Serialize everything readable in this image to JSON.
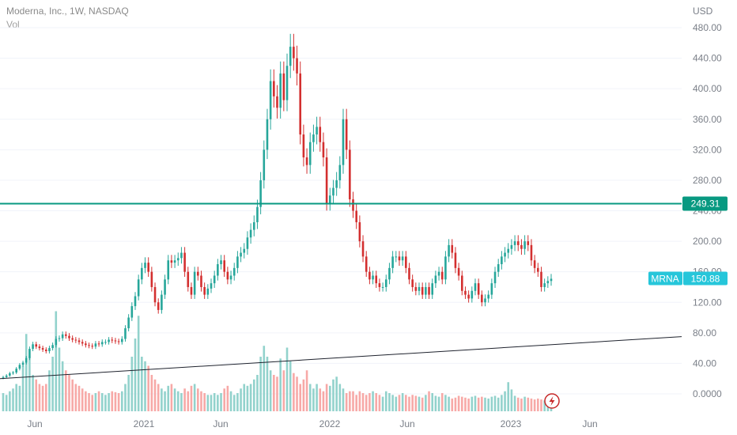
{
  "header": {
    "title": "Moderna, Inc., 1W, NASDAQ",
    "volume_label": "Vol"
  },
  "chart_data": {
    "type": "candlestick",
    "price_axis": {
      "unit_label": "USD",
      "ticks": [
        0,
        40,
        80,
        120,
        160,
        200,
        240,
        280,
        320,
        360,
        400,
        440,
        480
      ],
      "tick_labels": [
        "0.0000",
        "40.00",
        "80.00",
        "120.00",
        "160.00",
        "200.00",
        "240.00",
        "280.00",
        "320.00",
        "360.00",
        "400.00",
        "440.00",
        "480.00"
      ]
    },
    "time_axis": {
      "labels": [
        "Jun",
        "2021",
        "Jun",
        "2022",
        "Jun",
        "2023",
        "Jun"
      ]
    },
    "horizontal_level": {
      "value": 249.31,
      "label": "249.31",
      "color": "#089981"
    },
    "last_price": {
      "symbol": "MRNA",
      "value": 150.88,
      "label": "150.88",
      "color": "#26c6da"
    },
    "trendline": {
      "from": {
        "date": "2020-01",
        "price": 20
      },
      "to": {
        "date": "2023-09",
        "price": 75
      },
      "color": "#1e222d"
    },
    "colors": {
      "up": "#26a69a",
      "down": "#d32f2f",
      "vol_up": "#92d2cc",
      "vol_down": "#f7a9a7",
      "grid": "#f0f3fa"
    },
    "weekly_close": [
      22,
      24,
      27,
      28,
      33,
      38,
      41,
      47,
      59,
      65,
      62,
      60,
      58,
      56,
      60,
      64,
      72,
      73,
      78,
      76,
      73,
      71,
      70,
      68,
      66,
      64,
      63,
      62,
      66,
      65,
      68,
      68,
      71,
      70,
      69,
      68,
      72,
      86,
      100,
      115,
      128,
      150,
      165,
      172,
      160,
      140,
      120,
      110,
      130,
      150,
      175,
      172,
      175,
      178,
      185,
      160,
      140,
      130,
      160,
      155,
      140,
      130,
      138,
      145,
      155,
      170,
      175,
      160,
      150,
      155,
      165,
      180,
      185,
      190,
      205,
      215,
      225,
      245,
      280,
      320,
      360,
      410,
      390,
      375,
      420,
      385,
      430,
      455,
      440,
      420,
      340,
      310,
      300,
      330,
      340,
      350,
      330,
      310,
      250,
      260,
      270,
      280,
      300,
      360,
      320,
      255,
      240,
      225,
      200,
      180,
      160,
      150,
      155,
      145,
      140,
      140,
      150,
      165,
      180,
      180,
      175,
      180,
      165,
      150,
      140,
      135,
      140,
      130,
      140,
      130,
      145,
      155,
      160,
      150,
      180,
      195,
      185,
      165,
      155,
      135,
      130,
      125,
      135,
      145,
      130,
      120,
      125,
      130,
      145,
      160,
      170,
      180,
      185,
      190,
      195,
      200,
      195,
      190,
      200,
      195,
      175,
      165,
      160,
      140,
      145,
      148,
      150.88
    ],
    "weekly_volume": [
      20,
      18,
      22,
      25,
      30,
      28,
      50,
      85,
      60,
      40,
      35,
      30,
      28,
      30,
      45,
      60,
      110,
      70,
      55,
      45,
      40,
      35,
      30,
      28,
      25,
      22,
      20,
      18,
      20,
      22,
      20,
      18,
      20,
      22,
      21,
      20,
      22,
      30,
      40,
      60,
      80,
      105,
      60,
      55,
      50,
      40,
      35,
      30,
      25,
      22,
      28,
      30,
      25,
      22,
      20,
      25,
      22,
      28,
      30,
      25,
      22,
      20,
      18,
      18,
      20,
      18,
      20,
      25,
      28,
      22,
      18,
      20,
      25,
      30,
      28,
      30,
      35,
      40,
      60,
      72,
      60,
      45,
      40,
      38,
      58,
      45,
      70,
      55,
      42,
      38,
      30,
      35,
      45,
      30,
      25,
      30,
      25,
      22,
      30,
      28,
      35,
      38,
      30,
      25,
      20,
      22,
      22,
      18,
      22,
      20,
      18,
      20,
      22,
      20,
      18,
      16,
      22,
      20,
      18,
      16,
      18,
      20,
      18,
      16,
      18,
      17,
      16,
      15,
      18,
      22,
      20,
      17,
      16,
      20,
      18,
      16,
      14,
      15,
      17,
      16,
      15,
      14,
      16,
      17,
      15,
      16,
      15,
      14,
      16,
      17,
      15,
      18,
      22,
      32,
      24,
      17,
      15,
      14,
      16,
      15,
      14,
      13,
      14,
      13,
      12,
      11,
      11
    ]
  },
  "replay_button": {
    "icon": "lightning-icon"
  }
}
